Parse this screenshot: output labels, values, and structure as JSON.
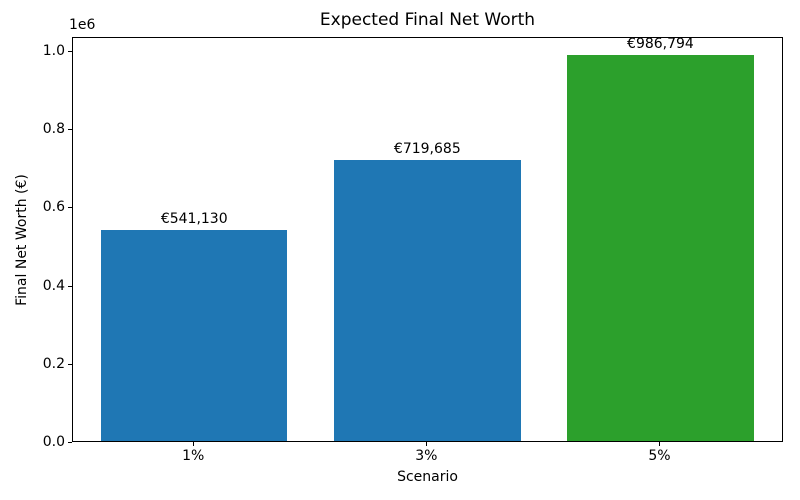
{
  "chart_data": {
    "type": "bar",
    "title": "Expected Final Net Worth",
    "xlabel": "Scenario",
    "ylabel": "Final Net Worth (€)",
    "categories": [
      "1%",
      "3%",
      "5%"
    ],
    "values": [
      541130,
      719685,
      986794
    ],
    "bar_labels": [
      "€541,130",
      "€719,685",
      "€986,794"
    ],
    "bar_colors": [
      "#1f77b4",
      "#1f77b4",
      "#2ca02c"
    ],
    "bar_width": 0.8,
    "xlim": [
      -0.52,
      2.53
    ],
    "ylim": [
      0,
      1036134
    ],
    "yticks": [
      0,
      200000,
      400000,
      600000,
      800000,
      1000000
    ],
    "ytick_labels": [
      "0.0",
      "0.2",
      "0.4",
      "0.6",
      "0.8",
      "1.0"
    ],
    "y_offset_text": "1e6",
    "grid": false,
    "legend_position": "none",
    "axis_color": "#000000",
    "text_color": "#000000"
  }
}
